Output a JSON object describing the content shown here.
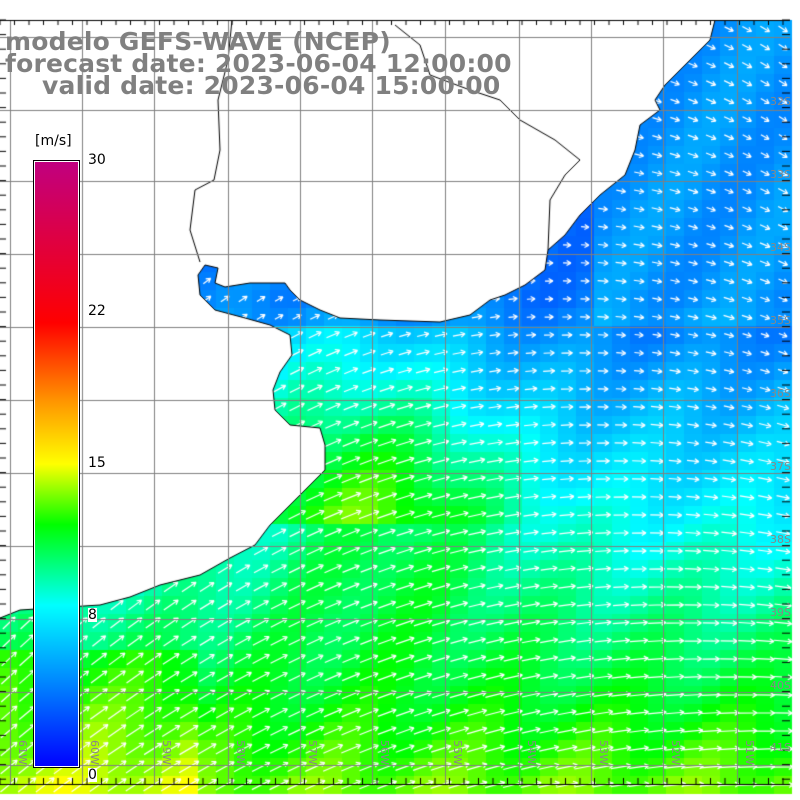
{
  "title": {
    "model": "modelo GEFS-WAVE (NCEP)",
    "forecast": "forecast date: 2023-06-04 12:00:00",
    "valid": "valid date: 2023-06-04 15:00:00"
  },
  "colorbar": {
    "unit": "[m/s]",
    "ticks": [
      "30",
      "22",
      "15",
      "8",
      "0"
    ],
    "tick_values": [
      30,
      22,
      15,
      8,
      0
    ]
  },
  "lat_labels": [
    "32S",
    "33S",
    "34S",
    "35S",
    "36S",
    "37S",
    "38S",
    "39S",
    "40S",
    "41S"
  ],
  "lon_labels": [
    "61W",
    "60W",
    "59W",
    "58W",
    "57W",
    "56W",
    "55W",
    "54W",
    "53W",
    "52W",
    "51W"
  ],
  "colors": {
    "land": "#ffffff",
    "grid": "#808080",
    "coast": "#000000",
    "arrow": "#ffffff"
  }
}
